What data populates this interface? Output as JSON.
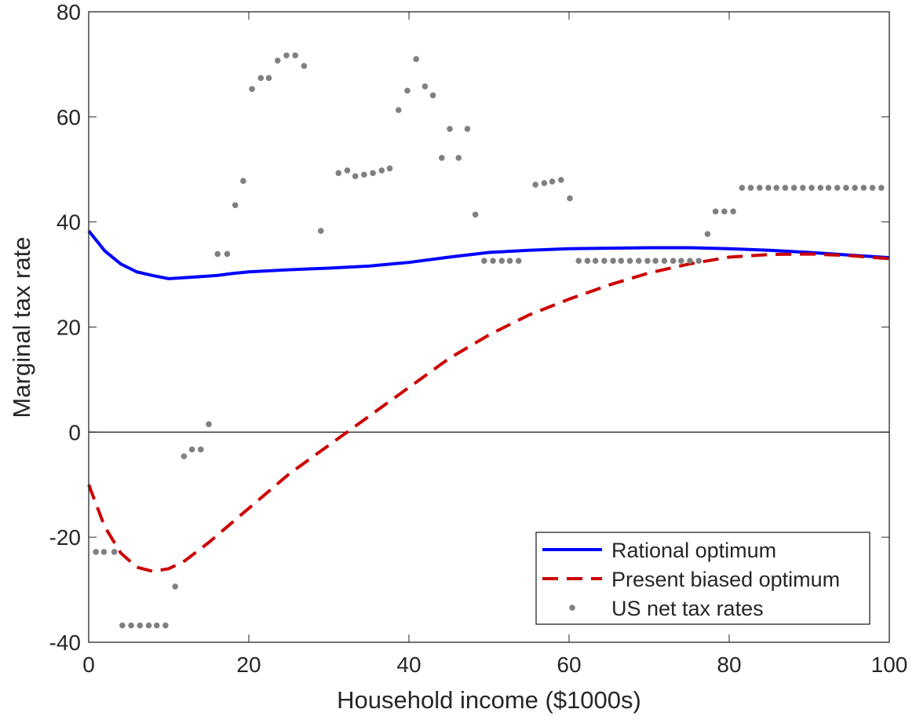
{
  "chart_data": {
    "type": "line",
    "xlabel": "Household income ($1000s)",
    "ylabel": "Marginal tax rate",
    "xlim": [
      0,
      100
    ],
    "xticks": [
      0,
      20,
      40,
      60,
      80,
      100
    ],
    "ylim": [
      -40,
      80
    ],
    "yticks": [
      -40,
      -20,
      0,
      20,
      40,
      60,
      80
    ],
    "zero_line": true,
    "legend": "lower right",
    "series": [
      {
        "name": "Rational optimum",
        "color": "#0000ff",
        "style": "solid",
        "x": [
          0,
          2,
          4,
          6,
          8,
          10,
          12,
          14,
          16,
          18,
          20,
          25,
          30,
          35,
          40,
          45,
          50,
          55,
          60,
          65,
          70,
          75,
          80,
          85,
          90,
          95,
          100
        ],
        "values": [
          38.3,
          34.5,
          32.0,
          30.5,
          29.8,
          29.2,
          29.4,
          29.6,
          29.8,
          30.2,
          30.5,
          30.9,
          31.2,
          31.6,
          32.3,
          33.3,
          34.2,
          34.6,
          34.9,
          35.0,
          35.1,
          35.1,
          34.9,
          34.6,
          34.2,
          33.7,
          33.2
        ]
      },
      {
        "name": "Present biased optimum",
        "color": "#cc0000",
        "style": "dashed",
        "x": [
          0,
          2,
          4,
          6,
          8,
          10,
          12,
          15,
          20,
          25,
          30,
          35,
          40,
          45,
          50,
          55,
          60,
          65,
          70,
          75,
          80,
          85,
          90,
          95,
          100
        ],
        "values": [
          -10,
          -18,
          -23,
          -25.7,
          -26.5,
          -26,
          -24.5,
          -21,
          -14.5,
          -8,
          -2.5,
          3,
          8.5,
          14,
          18.5,
          22.3,
          25.3,
          28,
          30.3,
          32,
          33.3,
          33.8,
          33.9,
          33.6,
          33.0
        ]
      },
      {
        "name": "US net tax rates",
        "color": "#808080",
        "style": "markers",
        "x": [
          0.9,
          1.9,
          3.2,
          4.2,
          5.3,
          6.4,
          7.5,
          8.5,
          9.6,
          10.8,
          11.9,
          12.9,
          14.0,
          15.0,
          16.1,
          17.3,
          18.3,
          19.3,
          20.4,
          21.5,
          22.5,
          23.6,
          24.7,
          25.8,
          26.9,
          29.0,
          31.2,
          32.3,
          33.3,
          34.4,
          35.5,
          36.6,
          37.6,
          38.7,
          39.8,
          40.9,
          42.0,
          43.0,
          44.1,
          45.1,
          46.2,
          47.3,
          48.3,
          49.4,
          50.5,
          51.6,
          52.6,
          53.7,
          55.8,
          56.9,
          57.9,
          59.0,
          60.1,
          61.2,
          62.3,
          63.3,
          64.4,
          65.5,
          66.5,
          67.6,
          68.7,
          69.8,
          70.8,
          71.9,
          73.0,
          74.0,
          75.1,
          76.2,
          77.3,
          78.3,
          79.4,
          80.5,
          81.6,
          82.7,
          83.8,
          84.9,
          85.9,
          87.0,
          88.1,
          89.2,
          90.3,
          91.4,
          92.4,
          93.5,
          94.6,
          95.7,
          96.8,
          97.9,
          99.0
        ],
        "values": [
          -22.8,
          -22.8,
          -22.8,
          -36.8,
          -36.8,
          -36.8,
          -36.8,
          -36.8,
          -36.8,
          -29.4,
          -4.6,
          -3.3,
          -3.3,
          1.5,
          33.9,
          33.9,
          43.2,
          47.8,
          65.3,
          67.4,
          67.4,
          70.7,
          71.7,
          71.7,
          69.7,
          38.3,
          49.3,
          49.8,
          48.7,
          49.0,
          49.3,
          49.8,
          50.2,
          61.3,
          65.0,
          71.0,
          65.8,
          64.1,
          52.2,
          57.7,
          52.2,
          57.7,
          41.4,
          32.6,
          32.6,
          32.6,
          32.6,
          32.6,
          47.1,
          47.4,
          47.7,
          48.0,
          44.5,
          32.6,
          32.6,
          32.6,
          32.6,
          32.6,
          32.6,
          32.6,
          32.6,
          32.6,
          32.6,
          32.6,
          32.6,
          32.6,
          32.6,
          32.6,
          37.7,
          42.0,
          42.0,
          42.0,
          46.5,
          46.5,
          46.5,
          46.5,
          46.5,
          46.5,
          46.5,
          46.5,
          46.5,
          46.5,
          46.5,
          46.5,
          46.5,
          46.5,
          46.5,
          46.5,
          46.5
        ]
      }
    ]
  }
}
